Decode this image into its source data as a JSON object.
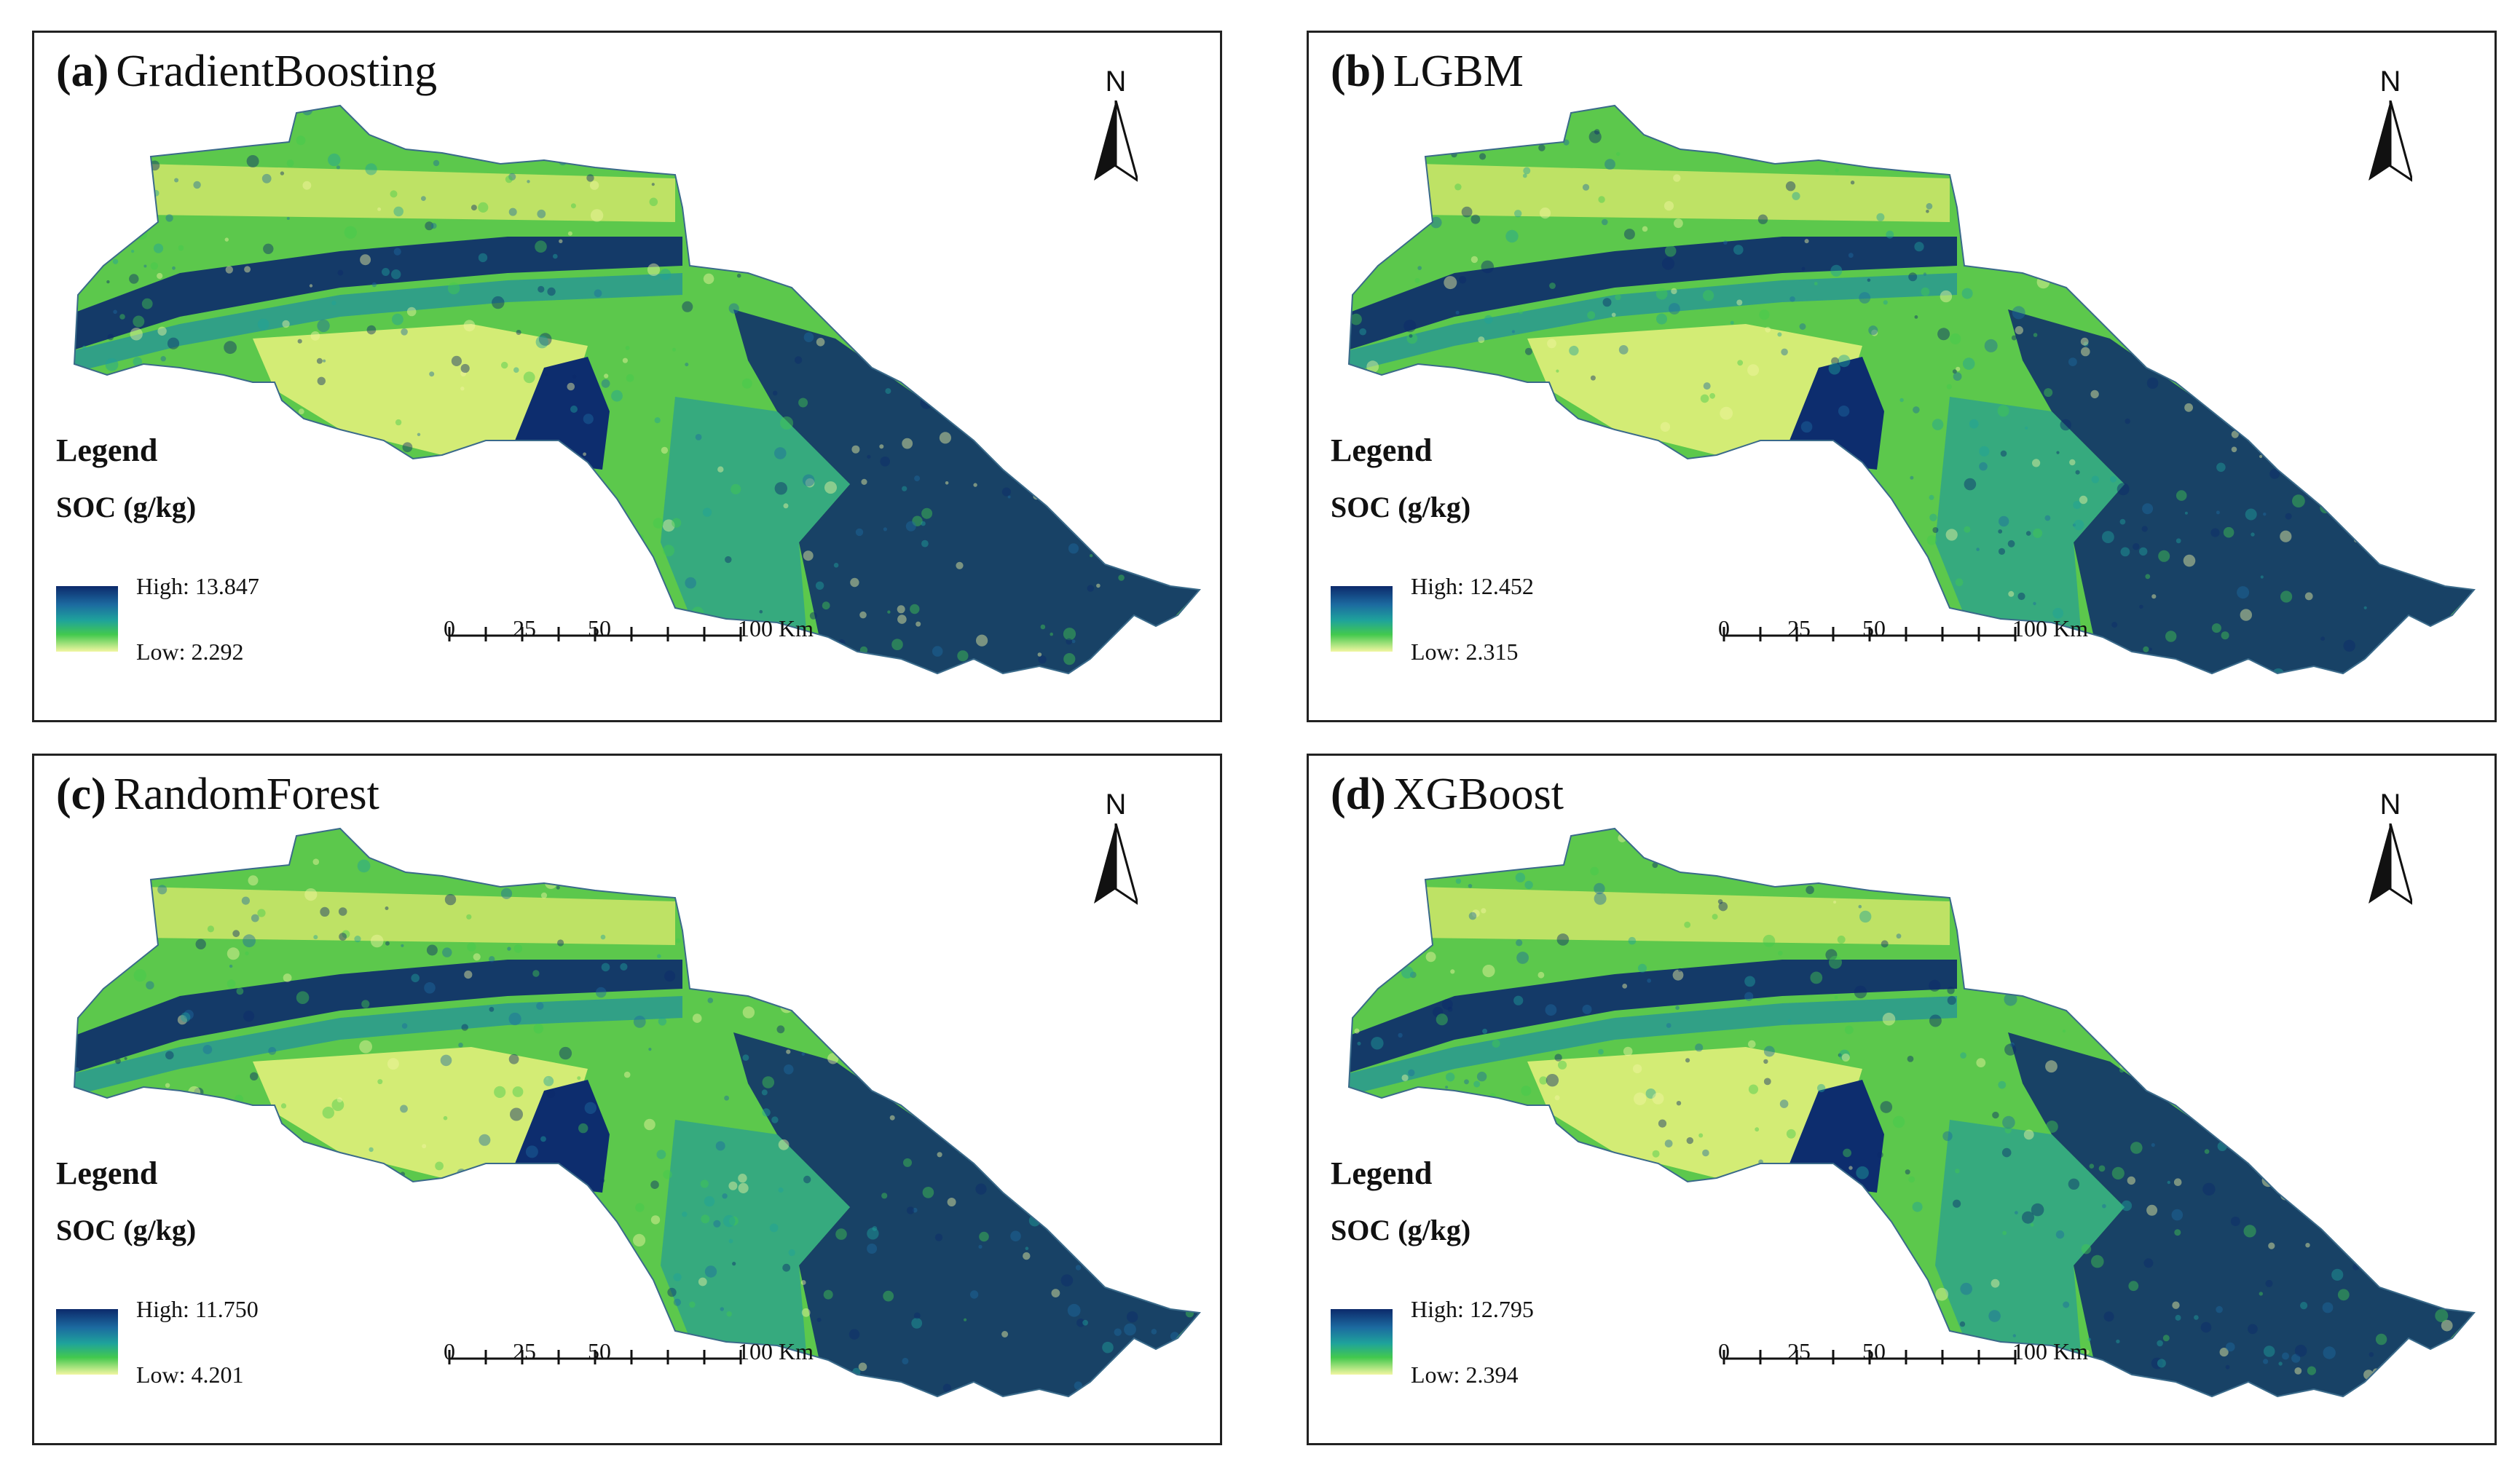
{
  "panels": [
    {
      "id": "a",
      "letter": "(a)",
      "model": "GradientBoosting",
      "legend_title": "Legend",
      "legend_sub": "SOC (g/kg)",
      "high": "High: 13.847",
      "low": "Low: 2.292",
      "high_value": 13.847,
      "low_value": 2.292
    },
    {
      "id": "b",
      "letter": "(b)",
      "model": "LGBM",
      "legend_title": "Legend",
      "legend_sub": "SOC (g/kg)",
      "high": "High: 12.452",
      "low": "Low: 2.315",
      "high_value": 12.452,
      "low_value": 2.315
    },
    {
      "id": "c",
      "letter": "(c)",
      "model": "RandomForest",
      "legend_title": "Legend",
      "legend_sub": "SOC (g/kg)",
      "high": "High: 11.750",
      "low": "Low: 4.201",
      "high_value": 11.75,
      "low_value": 4.201
    },
    {
      "id": "d",
      "letter": "(d)",
      "model": "XGBoost",
      "legend_title": "Legend",
      "legend_sub": "SOC (g/kg)",
      "high": "High: 12.795",
      "low": "Low: 2.394",
      "high_value": 12.795,
      "low_value": 2.394
    }
  ],
  "north_label": "N",
  "scale_bar": {
    "labels": [
      "0",
      "25",
      "50",
      "100 Km"
    ],
    "values": [
      0,
      25,
      50,
      100
    ],
    "unit": "Km"
  },
  "colors": {
    "ramp_high": "#0c2a6b",
    "ramp_mid": "#1ea29c",
    "ramp_green": "#43c94e",
    "ramp_low": "#f2f6a2",
    "panel_border": "#222222"
  }
}
